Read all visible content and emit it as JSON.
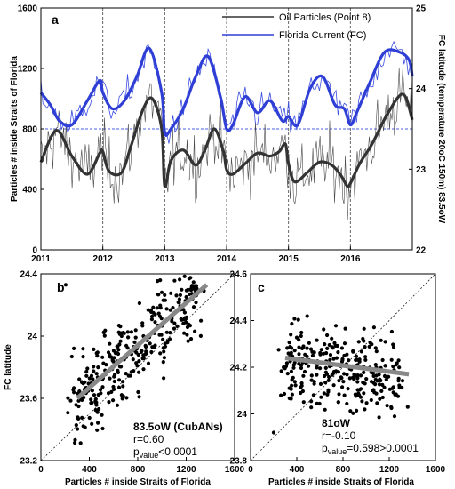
{
  "chart_data": [
    {
      "panel": "a",
      "type": "line",
      "ylabel_left": "Particles # inside Straits of Florida",
      "ylabel_right": "FC latitude (temperature 20oC 150m) 83.5oW",
      "ylim_left": [
        0,
        1600
      ],
      "ylim_right": [
        22,
        25
      ],
      "xlim": [
        2011,
        2017
      ],
      "x_ticks": [
        "2011",
        "2012",
        "2013",
        "2014",
        "2015",
        "2016"
      ],
      "y_ticks_left": [
        "0",
        "400",
        "800",
        "1200",
        "1600"
      ],
      "y_ticks_right": [
        "22",
        "23",
        "24",
        "25"
      ],
      "reference_line": {
        "left_axis_value": 800,
        "style": "dashed blue"
      },
      "year_dividers": [
        2012,
        2013,
        2014,
        2015,
        2016
      ],
      "legend": {
        "position": "top-right",
        "entries": [
          "Oil Particles (Point 8)",
          "Florida Current (FC)"
        ]
      },
      "series": [
        {
          "name": "Oil Particles (Point 8)",
          "axis": "left",
          "color": "#333333",
          "smooth_x": [
            2011.0,
            2011.25,
            2011.5,
            2011.75,
            2011.95,
            2012.0,
            2012.1,
            2012.3,
            2012.45,
            2012.65,
            2012.8,
            2012.95,
            2013.0,
            2013.1,
            2013.3,
            2013.5,
            2013.65,
            2013.8,
            2013.95,
            2014.0,
            2014.1,
            2014.3,
            2014.5,
            2014.7,
            2014.85,
            2014.95,
            2015.0,
            2015.1,
            2015.3,
            2015.5,
            2015.7,
            2015.85,
            2015.95,
            2016.0,
            2016.15,
            2016.35,
            2016.6,
            2016.85,
            2017.0
          ],
          "smooth_y": [
            580,
            790,
            620,
            500,
            640,
            650,
            520,
            510,
            680,
            930,
            1000,
            800,
            420,
            590,
            660,
            560,
            660,
            800,
            650,
            530,
            500,
            570,
            640,
            620,
            650,
            700,
            570,
            450,
            510,
            580,
            560,
            490,
            420,
            440,
            570,
            700,
            900,
            1030,
            860
          ]
        },
        {
          "name": "Florida Current (FC)",
          "axis": "right",
          "color": "#2f3fd6",
          "smooth_x": [
            2011.0,
            2011.15,
            2011.3,
            2011.5,
            2011.75,
            2011.95,
            2012.0,
            2012.15,
            2012.35,
            2012.55,
            2012.75,
            2012.95,
            2013.0,
            2013.1,
            2013.3,
            2013.5,
            2013.7,
            2013.9,
            2014.0,
            2014.1,
            2014.3,
            2014.5,
            2014.7,
            2014.9,
            2015.0,
            2015.15,
            2015.35,
            2015.55,
            2015.75,
            2015.9,
            2016.0,
            2016.1,
            2016.3,
            2016.55,
            2016.8,
            2016.95,
            2017.0
          ],
          "smooth_y": [
            23.95,
            23.8,
            23.6,
            23.55,
            23.85,
            24.1,
            23.95,
            23.75,
            23.85,
            24.15,
            24.5,
            23.95,
            23.45,
            23.5,
            23.75,
            24.15,
            24.4,
            23.9,
            23.5,
            23.55,
            23.9,
            23.7,
            23.85,
            23.6,
            23.65,
            23.55,
            24.0,
            24.15,
            23.8,
            23.75,
            23.55,
            23.7,
            24.05,
            24.45,
            24.45,
            24.35,
            24.15
          ]
        }
      ]
    },
    {
      "panel": "b",
      "type": "scatter",
      "xlabel": "Particles # inside Straits of Florida",
      "ylabel": "FC latitude",
      "xlim": [
        0,
        1600
      ],
      "ylim": [
        23.2,
        24.4
      ],
      "x_ticks": [
        "0",
        "400",
        "800",
        "1200",
        "1600"
      ],
      "y_ticks": [
        "23.2",
        "23.6",
        "24",
        "24.4"
      ],
      "annotation_lines": [
        "83.5oW (CubANs)",
        "r=0.60",
        "pvalue<0.0001"
      ],
      "fit_line": {
        "x": [
          300,
          1370
        ],
        "y": [
          23.6,
          24.33
        ]
      },
      "diagonal_x": [
        0,
        1600
      ],
      "diagonal_y": [
        23.2,
        24.4
      ]
    },
    {
      "panel": "c",
      "type": "scatter",
      "xlabel": "Particles # inside Straits of Florida",
      "xlim": [
        0,
        1600
      ],
      "ylim": [
        23.8,
        24.6
      ],
      "x_ticks": [
        "0",
        "400",
        "800",
        "1200",
        "1600"
      ],
      "y_ticks": [
        "23.8",
        "24",
        "24.2",
        "24.4",
        "24.6"
      ],
      "annotation_lines": [
        "81oW",
        "r=-0.10",
        "pvalue=0.598>0.0001"
      ],
      "fit_line": {
        "x": [
          300,
          1370
        ],
        "y": [
          24.24,
          24.17
        ]
      },
      "diagonal_x": [
        0,
        1600
      ],
      "diagonal_y": [
        23.8,
        24.6
      ]
    }
  ]
}
